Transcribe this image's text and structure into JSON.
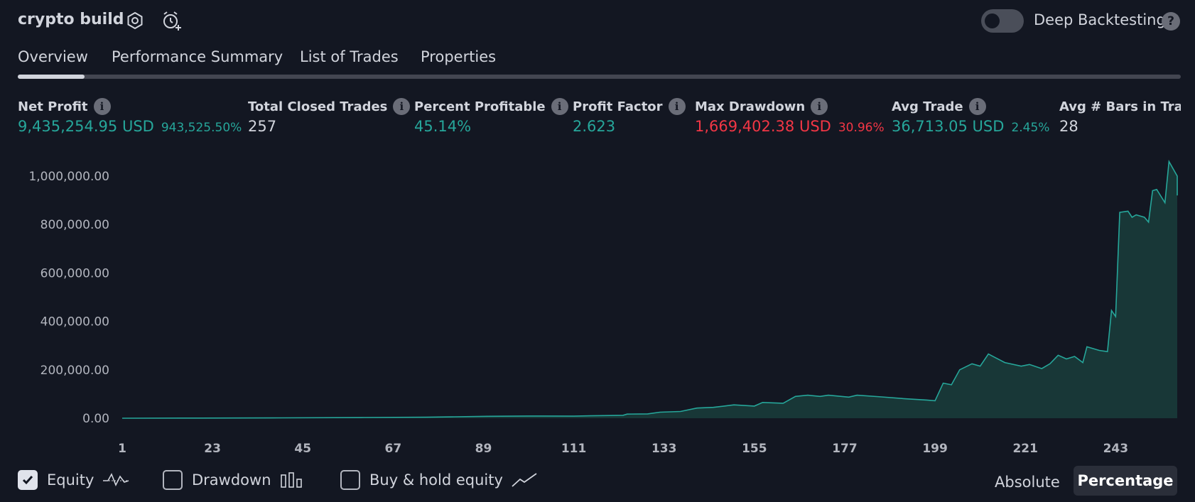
{
  "header": {
    "title": "crypto build",
    "deep_backtesting_label": "Deep Backtesting",
    "deep_backtesting_enabled": false,
    "help_glyph": "?"
  },
  "tabs": [
    {
      "label": "Overview",
      "active": true
    },
    {
      "label": "Performance Summary",
      "active": false
    },
    {
      "label": "List of Trades",
      "active": false
    },
    {
      "label": "Properties",
      "active": false
    }
  ],
  "metrics": {
    "net_profit": {
      "label": "Net Profit",
      "value": "9,435,254.95 USD",
      "pct": "943,525.50%"
    },
    "total_closed_trades": {
      "label": "Total Closed Trades",
      "value": "257"
    },
    "percent_profitable": {
      "label": "Percent Profitable",
      "value": "45.14%"
    },
    "profit_factor": {
      "label": "Profit Factor",
      "value": "2.623"
    },
    "max_drawdown": {
      "label": "Max Drawdown",
      "value": "1,669,402.38 USD",
      "pct": "30.96%"
    },
    "avg_trade": {
      "label": "Avg Trade",
      "value": "36,713.05 USD",
      "pct": "2.45%"
    },
    "avg_bars": {
      "label": "Avg # Bars in Trade",
      "value": "28"
    }
  },
  "colors": {
    "background": "#131722",
    "positive": "#26a69a",
    "negative": "#f23645",
    "equity_line": "#26a69a",
    "equity_fill": "#1a3b3a"
  },
  "chart_data": {
    "type": "area",
    "xlabel": "",
    "ylabel": "",
    "ylim": [
      0,
      1100000
    ],
    "yticks": [
      0,
      200000,
      400000,
      600000,
      800000,
      1000000
    ],
    "ytick_labels": [
      "0.00",
      "200,000.00",
      "400,000.00",
      "600,000.00",
      "800,000.00",
      "1,000,000.00"
    ],
    "xticks": [
      1,
      23,
      45,
      67,
      89,
      111,
      133,
      155,
      177,
      199,
      221,
      243
    ],
    "xlim": [
      1,
      258
    ],
    "series": [
      {
        "name": "Equity",
        "points": [
          [
            1,
            0
          ],
          [
            20,
            500
          ],
          [
            40,
            1500
          ],
          [
            60,
            3000
          ],
          [
            75,
            4000
          ],
          [
            82,
            6000
          ],
          [
            90,
            8000
          ],
          [
            100,
            9000
          ],
          [
            111,
            8500
          ],
          [
            115,
            10000
          ],
          [
            120,
            11000
          ],
          [
            123,
            12000
          ],
          [
            124,
            17000
          ],
          [
            129,
            18000
          ],
          [
            132,
            25000
          ],
          [
            137,
            28000
          ],
          [
            141,
            42000
          ],
          [
            145,
            45000
          ],
          [
            150,
            55000
          ],
          [
            155,
            50000
          ],
          [
            157,
            65000
          ],
          [
            162,
            62000
          ],
          [
            165,
            90000
          ],
          [
            168,
            95000
          ],
          [
            171,
            90000
          ],
          [
            173,
            95000
          ],
          [
            178,
            87000
          ],
          [
            180,
            95000
          ],
          [
            186,
            88000
          ],
          [
            192,
            80000
          ],
          [
            197,
            75000
          ],
          [
            199,
            72000
          ],
          [
            201,
            145000
          ],
          [
            203,
            138000
          ],
          [
            205,
            200000
          ],
          [
            208,
            225000
          ],
          [
            210,
            215000
          ],
          [
            212,
            265000
          ],
          [
            216,
            230000
          ],
          [
            220,
            215000
          ],
          [
            222,
            222000
          ],
          [
            225,
            205000
          ],
          [
            227,
            225000
          ],
          [
            229,
            260000
          ],
          [
            231,
            245000
          ],
          [
            233,
            255000
          ],
          [
            235,
            230000
          ],
          [
            236,
            295000
          ],
          [
            239,
            280000
          ],
          [
            241,
            275000
          ],
          [
            242,
            445000
          ],
          [
            243,
            420000
          ],
          [
            244,
            850000
          ],
          [
            246,
            855000
          ],
          [
            247,
            830000
          ],
          [
            248,
            840000
          ],
          [
            250,
            830000
          ],
          [
            251,
            810000
          ],
          [
            252,
            940000
          ],
          [
            253,
            945000
          ],
          [
            255,
            890000
          ],
          [
            256,
            1060000
          ],
          [
            258,
            1000000
          ],
          [
            260,
            920000
          ],
          [
            261,
            940000
          ]
        ]
      }
    ]
  },
  "footer": {
    "equity": {
      "label": "Equity",
      "checked": true
    },
    "drawdown": {
      "label": "Drawdown",
      "checked": false
    },
    "buyhold": {
      "label": "Buy & hold equity",
      "checked": false
    },
    "mode_absolute": "Absolute",
    "mode_percentage": "Percentage",
    "active_mode": "Percentage"
  }
}
